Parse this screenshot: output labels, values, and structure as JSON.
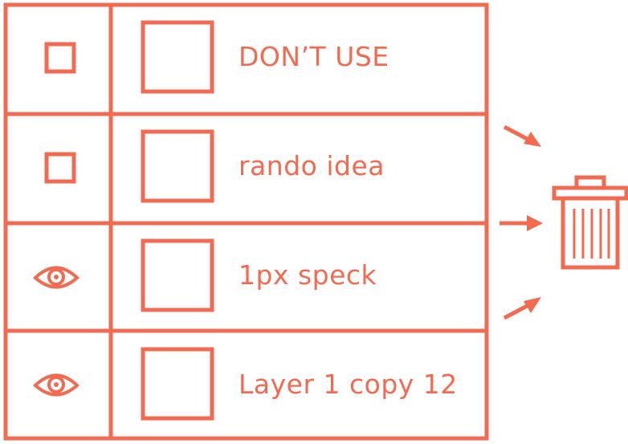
{
  "theme": {
    "accent": "#F26A50",
    "background": "#FFFFFF"
  },
  "layers": [
    {
      "visibility_icon": "empty-square-icon",
      "label": "DON’T USE"
    },
    {
      "visibility_icon": "empty-square-icon",
      "label": "rando idea"
    },
    {
      "visibility_icon": "eye-icon",
      "label": "1px speck"
    },
    {
      "visibility_icon": "eye-icon",
      "label": "Layer 1 copy 12"
    }
  ],
  "action": {
    "icon": "trash-can-icon",
    "arrows": [
      "arrow-down-right-icon",
      "arrow-right-icon",
      "arrow-up-right-icon"
    ]
  }
}
